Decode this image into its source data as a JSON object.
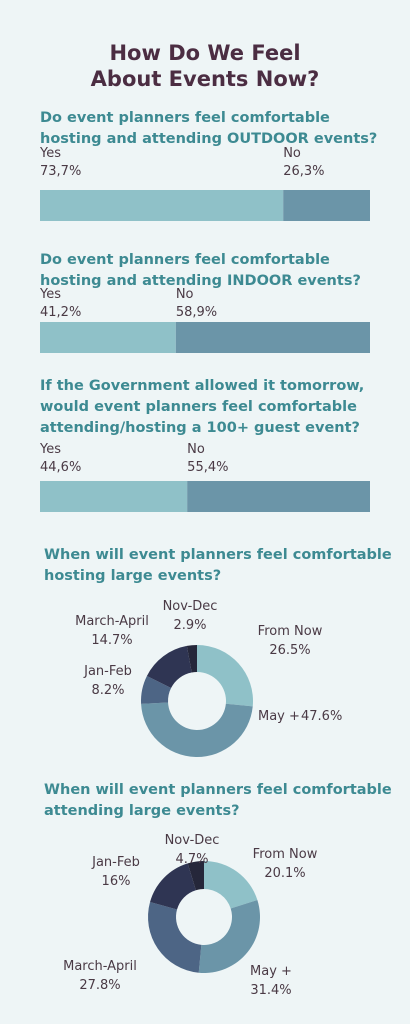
{
  "title": "How Do We Feel About Events Now?",
  "chart_data": [
    {
      "type": "bar",
      "title": "Do event planners feel comfortable hosting and attending OUTDOOR events?",
      "categories": [
        "Yes",
        "No"
      ],
      "values": [
        73.7,
        26.3
      ],
      "value_labels": [
        "73,7%",
        "26,3%"
      ],
      "colors": [
        "#8fc1c8",
        "#6b95a8"
      ]
    },
    {
      "type": "bar",
      "title": "Do event planners feel comfortable hosting and attending INDOOR events?",
      "categories": [
        "Yes",
        "No"
      ],
      "values": [
        41.2,
        58.9
      ],
      "value_labels": [
        "41,2%",
        "58,9%"
      ],
      "colors": [
        "#8fc1c8",
        "#6b95a8"
      ]
    },
    {
      "type": "bar",
      "title": "If the Government allowed it tomorrow, would event planners feel comfortable attending/hosting a 100+ guest event?",
      "categories": [
        "Yes",
        "No"
      ],
      "values": [
        44.6,
        55.4
      ],
      "value_labels": [
        "44,6%",
        "55,4%"
      ],
      "colors": [
        "#8fc1c8",
        "#6b95a8"
      ]
    },
    {
      "type": "pie",
      "title": "When  will event planners feel comfortable hosting  large events?",
      "categories": [
        "From Now",
        "May +",
        "Jan-Feb",
        "March-April",
        "Nov-Dec"
      ],
      "values": [
        26.5,
        47.6,
        8.2,
        14.7,
        2.9
      ],
      "value_labels": [
        "26.5%",
        "47.6%",
        "8.2%",
        "14.7%",
        "2.9%"
      ],
      "colors": [
        "#8fc1c8",
        "#6b95a8",
        "#4d6585",
        "#2f3553",
        "#25273a"
      ]
    },
    {
      "type": "pie",
      "title": "When  will event planners feel comfortable attending  large events?",
      "categories": [
        "From Now",
        "May +",
        "March-April",
        "Jan-Feb",
        "Nov-Dec"
      ],
      "values": [
        20.1,
        31.4,
        27.8,
        16,
        4.7
      ],
      "value_labels": [
        "20.1%",
        "31.4%",
        "27.8%",
        "16%",
        "4.7%"
      ],
      "colors": [
        "#8fc1c8",
        "#6b95a8",
        "#4d6585",
        "#2f3553",
        "#25273a"
      ]
    }
  ]
}
